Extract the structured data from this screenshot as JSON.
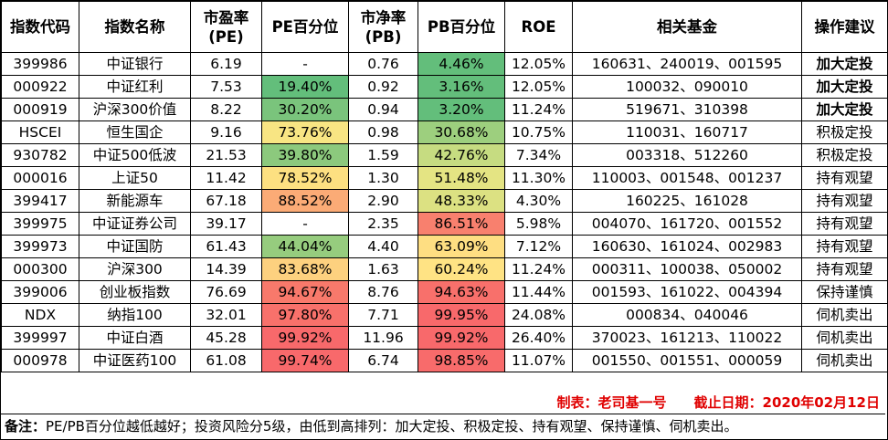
{
  "headers": [
    "指数代码",
    "指数名称",
    "市盈率(PE)",
    "PE百分位",
    "市净率(PB)",
    "PB百分位",
    "ROE",
    "相关基金",
    "操作建议"
  ],
  "rows": [
    {
      "code": "399986",
      "name": "中证银行",
      "pe": "6.19",
      "pe_pct": "-",
      "pe_color": "#ffffff",
      "pb": "0.76",
      "pb_pct": "4.46%",
      "pb_color": "#63be7b",
      "roe": "12.05%",
      "funds": "160631、240019、001595",
      "advice": "加大定投",
      "bold": true
    },
    {
      "code": "000922",
      "name": "中证红利",
      "pe": "7.53",
      "pe_pct": "19.40%",
      "pe_color": "#63be7b",
      "pb": "0.92",
      "pb_pct": "3.16%",
      "pb_color": "#63be7b",
      "roe": "12.05%",
      "funds": "100032、090010",
      "advice": "加大定投",
      "bold": true
    },
    {
      "code": "000919",
      "name": "沪深300价值",
      "pe": "8.22",
      "pe_pct": "30.20%",
      "pe_color": "#7ac47c",
      "pb": "0.94",
      "pb_pct": "3.20%",
      "pb_color": "#63be7b",
      "roe": "11.24%",
      "funds": "519671、310398",
      "advice": "加大定投",
      "bold": true
    },
    {
      "code": "HSCEI",
      "name": "恒生国企",
      "pe": "9.16",
      "pe_pct": "73.76%",
      "pe_color": "#f8e583",
      "pb": "0.98",
      "pb_pct": "30.68%",
      "pb_color": "#9dcf7e",
      "roe": "10.75%",
      "funds": "110031、160717",
      "advice": "积极定投",
      "bold": false
    },
    {
      "code": "930782",
      "name": "中证500低波",
      "pe": "21.53",
      "pe_pct": "39.80%",
      "pe_color": "#8cc97d",
      "pb": "1.59",
      "pb_pct": "42.76%",
      "pb_color": "#c6dc81",
      "roe": "7.34%",
      "funds": "003318、512260",
      "advice": "积极定投",
      "bold": false
    },
    {
      "code": "000016",
      "name": "上证50",
      "pe": "11.42",
      "pe_pct": "78.52%",
      "pe_color": "#fde081",
      "pb": "1.30",
      "pb_pct": "51.48%",
      "pb_color": "#e4e483",
      "roe": "11.30%",
      "funds": "110003、001548、001237",
      "advice": "持有观望",
      "bold": false
    },
    {
      "code": "399417",
      "name": "新能源车",
      "pe": "67.18",
      "pe_pct": "88.52%",
      "pe_color": "#fbab76",
      "pb": "2.90",
      "pb_pct": "48.33%",
      "pb_color": "#dce182",
      "roe": "4.30%",
      "funds": "160225、161028",
      "advice": "持有观望",
      "bold": false
    },
    {
      "code": "399975",
      "name": "中证证券公司",
      "pe": "39.17",
      "pe_pct": "-",
      "pe_color": "#ffffff",
      "pb": "2.35",
      "pb_pct": "86.51%",
      "pb_color": "#f8806e",
      "roe": "5.98%",
      "funds": "004070、161720、001552",
      "advice": "持有观望",
      "bold": false
    },
    {
      "code": "399973",
      "name": "中证国防",
      "pe": "61.43",
      "pe_pct": "44.04%",
      "pe_color": "#96cc7e",
      "pb": "4.40",
      "pb_pct": "63.09%",
      "pb_color": "#fede82",
      "roe": "7.12%",
      "funds": "160630、161024、002983",
      "advice": "持有观望",
      "bold": false
    },
    {
      "code": "000300",
      "name": "沪深300",
      "pe": "14.39",
      "pe_pct": "83.68%",
      "pe_color": "#fdd17f",
      "pb": "1.63",
      "pb_pct": "60.24%",
      "pb_color": "#ffe384",
      "roe": "11.24%",
      "funds": "000311、100038、050002",
      "advice": "持有观望",
      "bold": false
    },
    {
      "code": "399006",
      "name": "创业板指数",
      "pe": "76.69",
      "pe_pct": "94.67%",
      "pe_color": "#f8796b",
      "pb": "8.76",
      "pb_pct": "94.63%",
      "pb_color": "#f8706b",
      "roe": "11.44%",
      "funds": "001593、161022、004394",
      "advice": "保持谨慎",
      "bold": false
    },
    {
      "code": "NDX",
      "name": "纳指100",
      "pe": "32.01",
      "pe_pct": "97.80%",
      "pe_color": "#f8716b",
      "pb": "7.71",
      "pb_pct": "99.95%",
      "pb_color": "#f8696b",
      "roe": "24.08%",
      "funds": "000834、040046",
      "advice": "伺机卖出",
      "bold": false
    },
    {
      "code": "399997",
      "name": "中证白酒",
      "pe": "45.28",
      "pe_pct": "99.92%",
      "pe_color": "#f8696b",
      "pb": "11.96",
      "pb_pct": "99.92%",
      "pb_color": "#f8696b",
      "roe": "26.40%",
      "funds": "370023、161213、110022",
      "advice": "伺机卖出",
      "bold": false
    },
    {
      "code": "000978",
      "name": "中证医药100",
      "pe": "61.08",
      "pe_pct": "99.74%",
      "pe_color": "#f8696b",
      "pb": "6.74",
      "pb_pct": "98.85%",
      "pb_color": "#f86b6b",
      "roe": "11.07%",
      "funds": "001550、001551、000059",
      "advice": "伺机卖出",
      "bold": false
    }
  ],
  "credit": "制表：老司基一号　　截止日期：2020年02月12日",
  "note_label": "备注：",
  "note_text": "PE/PB百分位越低越好；投资风险分5级，由低到高排列：加大定投、积极定投、持有观望、保持谨慎、伺机卖出。",
  "colors": {
    "credit_red": "#e00000",
    "green": "#63be7b",
    "yellow": "#ffe384",
    "red": "#f8696b"
  }
}
